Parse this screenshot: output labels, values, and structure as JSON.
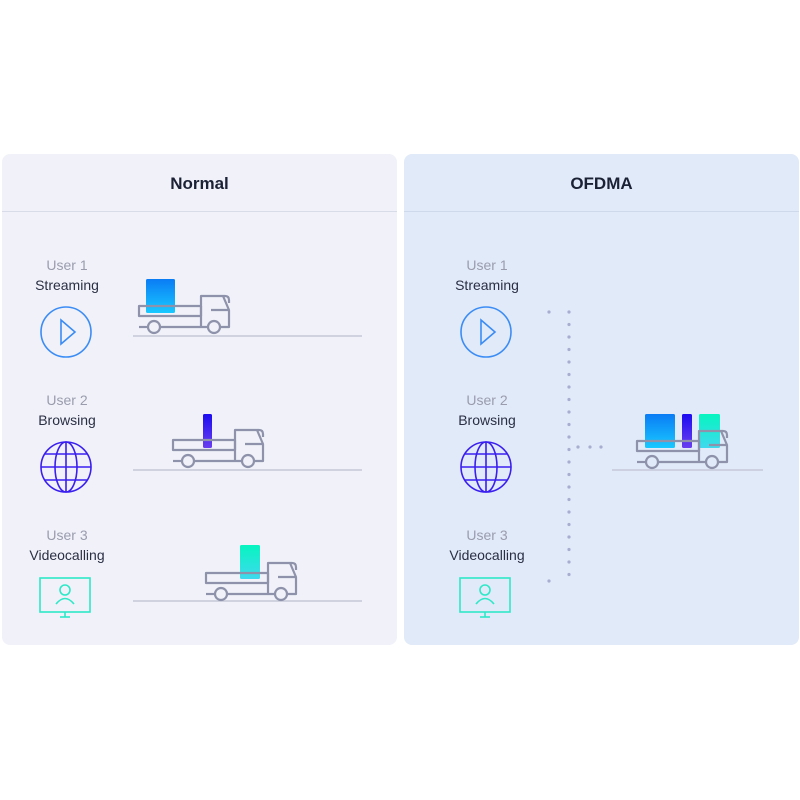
{
  "panels": [
    {
      "title": "Normal",
      "users": [
        {
          "user": "User 1",
          "activity": "Streaming",
          "icon": "play-icon"
        },
        {
          "user": "User 2",
          "activity": "Browsing",
          "icon": "globe-icon"
        },
        {
          "user": "User 3",
          "activity": "Videocalling",
          "icon": "monitor-user-icon"
        }
      ]
    },
    {
      "title": "OFDMA",
      "users": [
        {
          "user": "User 1",
          "activity": "Streaming",
          "icon": "play-icon"
        },
        {
          "user": "User 2",
          "activity": "Browsing",
          "icon": "globe-icon"
        },
        {
          "user": "User 3",
          "activity": "Videocalling",
          "icon": "monitor-user-icon"
        }
      ]
    }
  ],
  "colors": {
    "streaming": "#1e90ff",
    "browsing": "#3a1ff0",
    "videocalling": "#2ee8c8",
    "truck": "#8e93ab"
  }
}
